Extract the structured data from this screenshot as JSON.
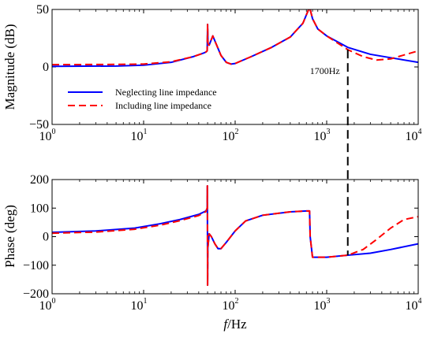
{
  "chart_data": [
    {
      "type": "line",
      "panel": "magnitude",
      "xscale": "log",
      "xlim": [
        1,
        10000
      ],
      "ylim": [
        -50,
        50
      ],
      "ylabel": "Magnitude (dB)",
      "xlabel": "",
      "xticks": [
        {
          "base": "10",
          "exp": "0"
        },
        {
          "base": "10",
          "exp": "1"
        },
        {
          "base": "10",
          "exp": "2"
        },
        {
          "base": "10",
          "exp": "3"
        },
        {
          "base": "10",
          "exp": "4"
        }
      ],
      "yticks": [
        "50",
        "0",
        "−50"
      ],
      "legend": "upper-left",
      "series": [
        {
          "name": "Neglecting line impedance",
          "color": "#0000ff",
          "dash": "solid",
          "points": [
            [
              1,
              0.5
            ],
            [
              5,
              0.8
            ],
            [
              10,
              1.5
            ],
            [
              20,
              4
            ],
            [
              35,
              9
            ],
            [
              45,
              12
            ],
            [
              48,
              13
            ],
            [
              49.5,
              14
            ],
            [
              50,
              37
            ],
            [
              50.5,
              20
            ],
            [
              52,
              19
            ],
            [
              57,
              27
            ],
            [
              62,
              20
            ],
            [
              70,
              10
            ],
            [
              80,
              4
            ],
            [
              90,
              2.5
            ],
            [
              100,
              3
            ],
            [
              150,
              9
            ],
            [
              250,
              17
            ],
            [
              400,
              26
            ],
            [
              550,
              38
            ],
            [
              620,
              48
            ],
            [
              650,
              52
            ],
            [
              700,
              42
            ],
            [
              800,
              33
            ],
            [
              1000,
              27
            ],
            [
              1700,
              17
            ],
            [
              3000,
              11
            ],
            [
              5000,
              8
            ],
            [
              10000,
              4
            ]
          ]
        },
        {
          "name": "Including line impedance",
          "color": "#ff0000",
          "dash": "dashed",
          "points": [
            [
              1,
              2
            ],
            [
              5,
              2.2
            ],
            [
              10,
              2.5
            ],
            [
              20,
              4.5
            ],
            [
              35,
              9
            ],
            [
              45,
              12
            ],
            [
              48,
              13
            ],
            [
              49.5,
              14
            ],
            [
              50,
              37
            ],
            [
              50.5,
              20
            ],
            [
              52,
              19
            ],
            [
              57,
              27
            ],
            [
              62,
              20
            ],
            [
              70,
              10
            ],
            [
              80,
              4
            ],
            [
              90,
              2.5
            ],
            [
              100,
              3
            ],
            [
              150,
              9
            ],
            [
              250,
              17
            ],
            [
              400,
              26
            ],
            [
              550,
              38
            ],
            [
              620,
              48
            ],
            [
              650,
              52
            ],
            [
              700,
              42
            ],
            [
              800,
              33
            ],
            [
              1000,
              27
            ],
            [
              1700,
              15
            ],
            [
              2500,
              9
            ],
            [
              3500,
              6
            ],
            [
              5000,
              7
            ],
            [
              10000,
              14
            ]
          ]
        }
      ],
      "annotations": [
        {
          "text": "1700Hz",
          "x": 1700
        }
      ]
    },
    {
      "type": "line",
      "panel": "phase",
      "xscale": "log",
      "xlim": [
        1,
        10000
      ],
      "ylim": [
        -200,
        200
      ],
      "ylabel": "Phase (deg)",
      "xlabel": "f/Hz",
      "xlabel_italic": "f",
      "xlabel_rest": "/Hz",
      "xticks": [
        {
          "base": "10",
          "exp": "0"
        },
        {
          "base": "10",
          "exp": "1"
        },
        {
          "base": "10",
          "exp": "2"
        },
        {
          "base": "10",
          "exp": "3"
        },
        {
          "base": "10",
          "exp": "4"
        }
      ],
      "yticks": [
        "200",
        "100",
        "0",
        "−100",
        "−200"
      ],
      "series": [
        {
          "name": "Neglecting line impedance",
          "color": "#0000ff",
          "dash": "solid",
          "points": [
            [
              1,
              15
            ],
            [
              3,
              20
            ],
            [
              8,
              30
            ],
            [
              15,
              45
            ],
            [
              25,
              60
            ],
            [
              40,
              78
            ],
            [
              48,
              90
            ],
            [
              49.5,
              100
            ],
            [
              49.7,
              178
            ],
            [
              50,
              -170
            ],
            [
              50.3,
              -40
            ],
            [
              52,
              10
            ],
            [
              55,
              0
            ],
            [
              60,
              -25
            ],
            [
              65,
              -42
            ],
            [
              70,
              -42
            ],
            [
              80,
              -20
            ],
            [
              100,
              20
            ],
            [
              130,
              55
            ],
            [
              200,
              75
            ],
            [
              400,
              87
            ],
            [
              600,
              90
            ],
            [
              650,
              90
            ],
            [
              660,
              0
            ],
            [
              700,
              -72
            ],
            [
              1000,
              -72
            ],
            [
              1700,
              -65
            ],
            [
              3000,
              -58
            ],
            [
              5000,
              -45
            ],
            [
              10000,
              -25
            ]
          ]
        },
        {
          "name": "Including line impedance",
          "color": "#ff0000",
          "dash": "dashed",
          "points": [
            [
              1,
              12
            ],
            [
              3,
              16
            ],
            [
              8,
              26
            ],
            [
              15,
              40
            ],
            [
              25,
              56
            ],
            [
              40,
              74
            ],
            [
              48,
              88
            ],
            [
              49.5,
              100
            ],
            [
              49.7,
              178
            ],
            [
              50,
              -170
            ],
            [
              50.3,
              -40
            ],
            [
              52,
              10
            ],
            [
              55,
              0
            ],
            [
              60,
              -25
            ],
            [
              65,
              -42
            ],
            [
              70,
              -42
            ],
            [
              80,
              -20
            ],
            [
              100,
              20
            ],
            [
              130,
              55
            ],
            [
              200,
              75
            ],
            [
              400,
              87
            ],
            [
              600,
              90
            ],
            [
              650,
              90
            ],
            [
              660,
              0
            ],
            [
              700,
              -72
            ],
            [
              1000,
              -72
            ],
            [
              1700,
              -65
            ],
            [
              2500,
              -45
            ],
            [
              3500,
              -10
            ],
            [
              5000,
              30
            ],
            [
              7000,
              60
            ],
            [
              10000,
              70
            ]
          ]
        }
      ]
    }
  ]
}
